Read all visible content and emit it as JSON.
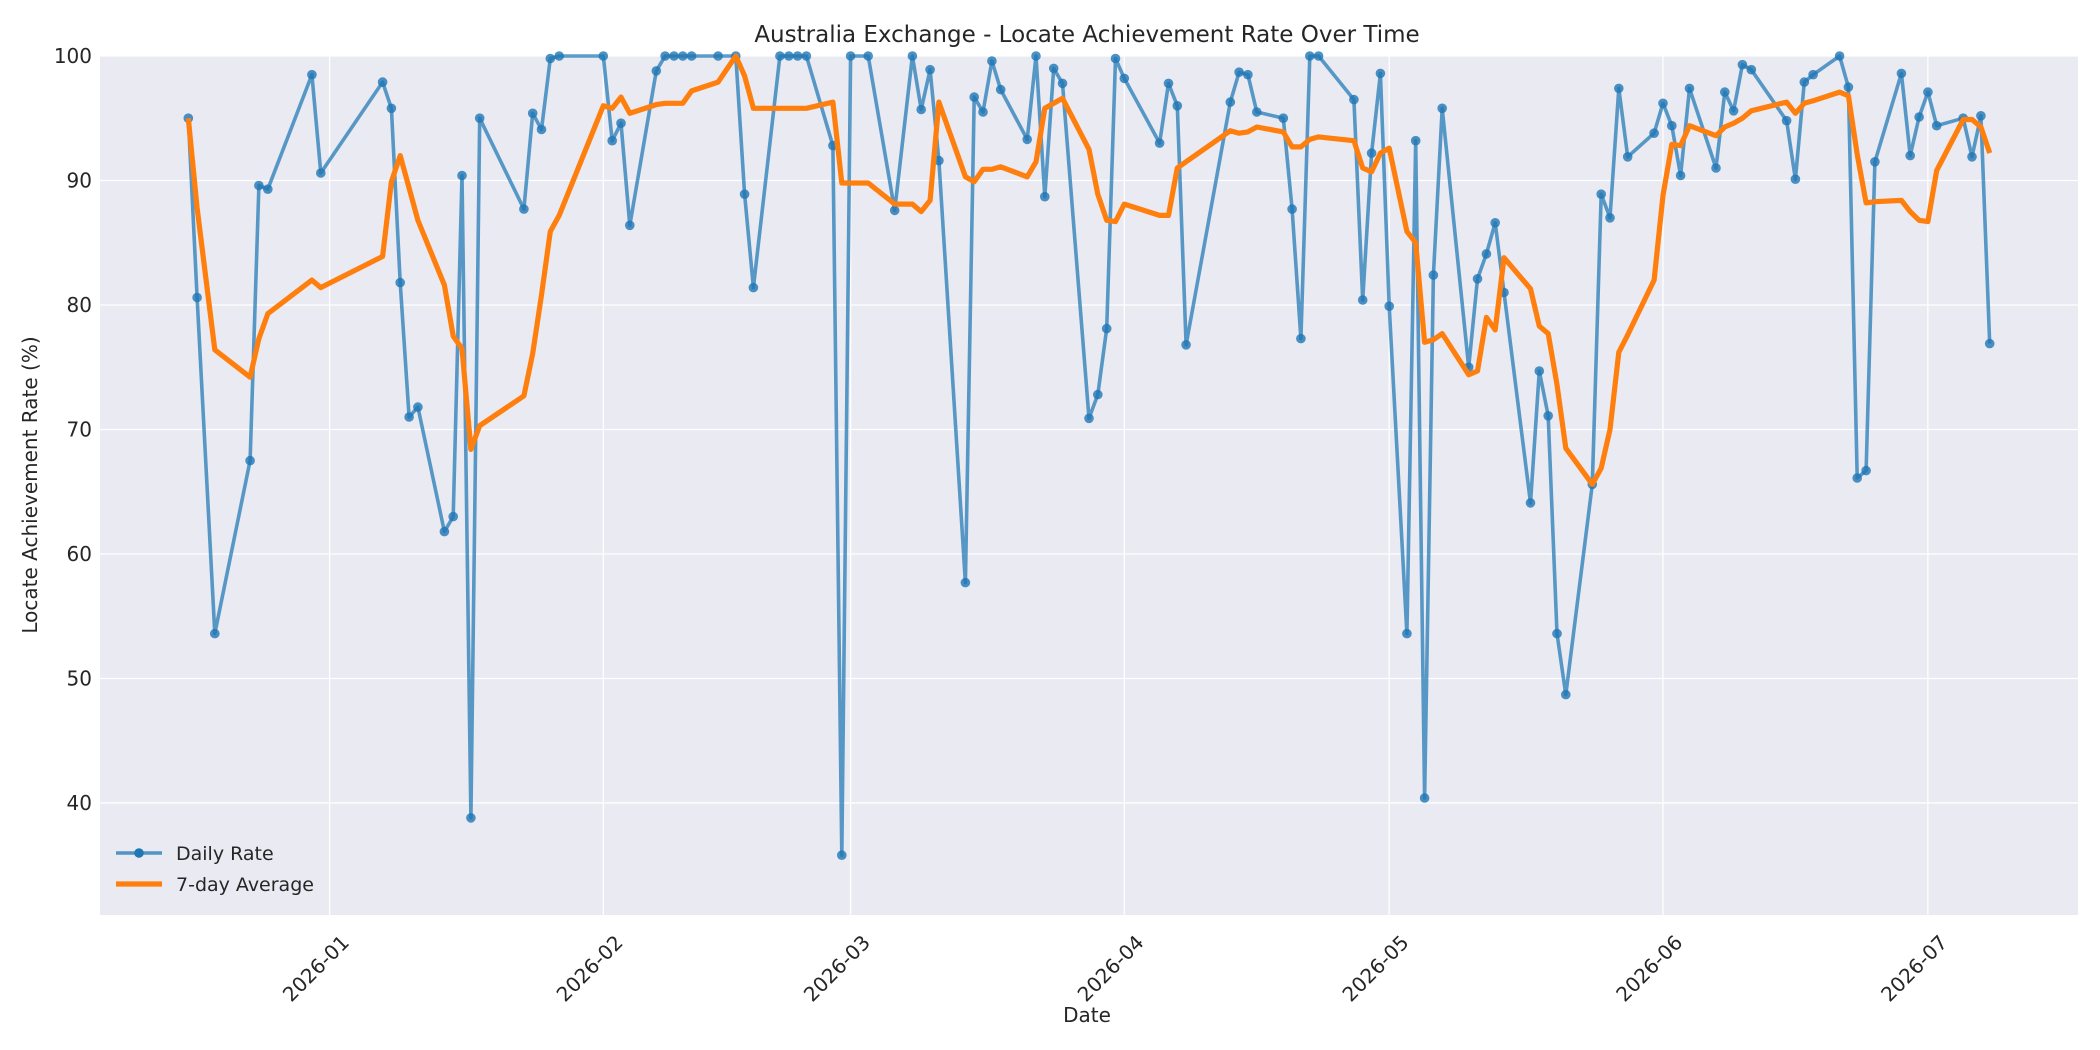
{
  "chart_data": {
    "type": "line",
    "title": "Australia Exchange - Locate Achievement Rate Over Time",
    "xlabel": "Date",
    "ylabel": "Locate Achievement Rate (%)",
    "xlim": [
      "2025-12-06",
      "2026-07-18"
    ],
    "ylim": [
      31,
      100
    ],
    "x_ticks": [
      "2026-01-01",
      "2026-02-01",
      "2026-03-01",
      "2026-04-01",
      "2026-05-01",
      "2026-06-01",
      "2026-07-01"
    ],
    "x_tick_labels": [
      "2026-01",
      "2026-02",
      "2026-03",
      "2026-04",
      "2026-05",
      "2026-06",
      "2026-07"
    ],
    "y_ticks": [
      40,
      50,
      60,
      70,
      80,
      90,
      100
    ],
    "y_tick_labels": [
      "40",
      "50",
      "60",
      "70",
      "80",
      "90",
      "100"
    ],
    "grid": true,
    "legend_position": "lower-left",
    "series": [
      {
        "name": "Daily Rate",
        "color": "#1f77b4",
        "marker": "circle",
        "points": [
          [
            "2025-12-16",
            95.0
          ],
          [
            "2025-12-17",
            80.6
          ],
          [
            "2025-12-19",
            53.6
          ],
          [
            "2025-12-23",
            67.5
          ],
          [
            "2025-12-24",
            89.6
          ],
          [
            "2025-12-25",
            89.3
          ],
          [
            "2025-12-30",
            98.5
          ],
          [
            "2025-12-31",
            90.6
          ],
          [
            "2026-01-07",
            97.9
          ],
          [
            "2026-01-08",
            95.8
          ],
          [
            "2026-01-09",
            81.8
          ],
          [
            "2026-01-10",
            71.0
          ],
          [
            "2026-01-11",
            71.8
          ],
          [
            "2026-01-14",
            61.8
          ],
          [
            "2026-01-15",
            63.0
          ],
          [
            "2026-01-16",
            90.4
          ],
          [
            "2026-01-17",
            38.8
          ],
          [
            "2026-01-18",
            95.0
          ],
          [
            "2026-01-23",
            87.7
          ],
          [
            "2026-01-24",
            95.4
          ],
          [
            "2026-01-25",
            94.1
          ],
          [
            "2026-01-26",
            99.8
          ],
          [
            "2026-01-27",
            100.0
          ],
          [
            "2026-02-01",
            100.0
          ],
          [
            "2026-02-02",
            93.2
          ],
          [
            "2026-02-03",
            94.6
          ],
          [
            "2026-02-04",
            86.4
          ],
          [
            "2026-02-07",
            98.8
          ],
          [
            "2026-02-08",
            100.0
          ],
          [
            "2026-02-09",
            100.0
          ],
          [
            "2026-02-10",
            100.0
          ],
          [
            "2026-02-11",
            100.0
          ],
          [
            "2026-02-14",
            100.0
          ],
          [
            "2026-02-16",
            100.0
          ],
          [
            "2026-02-17",
            88.9
          ],
          [
            "2026-02-18",
            81.4
          ],
          [
            "2026-02-21",
            100.0
          ],
          [
            "2026-02-22",
            100.0
          ],
          [
            "2026-02-23",
            100.0
          ],
          [
            "2026-02-24",
            100.0
          ],
          [
            "2026-02-27",
            92.8
          ],
          [
            "2026-02-28",
            35.8
          ],
          [
            "2026-03-01",
            100.0
          ],
          [
            "2026-03-03",
            100.0
          ],
          [
            "2026-03-06",
            87.6
          ],
          [
            "2026-03-08",
            100.0
          ],
          [
            "2026-03-09",
            95.7
          ],
          [
            "2026-03-10",
            98.9
          ],
          [
            "2026-03-11",
            91.6
          ],
          [
            "2026-03-14",
            57.7
          ],
          [
            "2026-03-15",
            96.7
          ],
          [
            "2026-03-16",
            95.5
          ],
          [
            "2026-03-17",
            99.6
          ],
          [
            "2026-03-18",
            97.3
          ],
          [
            "2026-03-21",
            93.3
          ],
          [
            "2026-03-22",
            100.0
          ],
          [
            "2026-03-23",
            88.7
          ],
          [
            "2026-03-24",
            99.0
          ],
          [
            "2026-03-25",
            97.8
          ],
          [
            "2026-03-28",
            70.9
          ],
          [
            "2026-03-29",
            72.8
          ],
          [
            "2026-03-30",
            78.1
          ],
          [
            "2026-03-31",
            99.8
          ],
          [
            "2026-04-01",
            98.2
          ],
          [
            "2026-04-05",
            93.0
          ],
          [
            "2026-04-06",
            97.8
          ],
          [
            "2026-04-07",
            96.0
          ],
          [
            "2026-04-08",
            76.8
          ],
          [
            "2026-04-13",
            96.3
          ],
          [
            "2026-04-14",
            98.7
          ],
          [
            "2026-04-15",
            98.5
          ],
          [
            "2026-04-16",
            95.5
          ],
          [
            "2026-04-19",
            95.0
          ],
          [
            "2026-04-20",
            87.7
          ],
          [
            "2026-04-21",
            77.3
          ],
          [
            "2026-04-22",
            100.0
          ],
          [
            "2026-04-23",
            100.0
          ],
          [
            "2026-04-27",
            96.5
          ],
          [
            "2026-04-28",
            80.4
          ],
          [
            "2026-04-29",
            92.2
          ],
          [
            "2026-04-30",
            98.6
          ],
          [
            "2026-05-01",
            79.9
          ],
          [
            "2026-05-03",
            53.6
          ],
          [
            "2026-05-04",
            93.2
          ],
          [
            "2026-05-05",
            40.4
          ],
          [
            "2026-05-06",
            82.4
          ],
          [
            "2026-05-07",
            95.8
          ],
          [
            "2026-05-10",
            75.0
          ],
          [
            "2026-05-11",
            82.1
          ],
          [
            "2026-05-12",
            84.1
          ],
          [
            "2026-05-13",
            86.6
          ],
          [
            "2026-05-14",
            81.0
          ],
          [
            "2026-05-17",
            64.1
          ],
          [
            "2026-05-18",
            74.7
          ],
          [
            "2026-05-19",
            71.1
          ],
          [
            "2026-05-20",
            53.6
          ],
          [
            "2026-05-21",
            48.7
          ],
          [
            "2026-05-24",
            65.6
          ],
          [
            "2026-05-25",
            88.9
          ],
          [
            "2026-05-26",
            87.0
          ],
          [
            "2026-05-27",
            97.4
          ],
          [
            "2026-05-28",
            91.9
          ],
          [
            "2026-05-31",
            93.8
          ],
          [
            "2026-06-01",
            96.2
          ],
          [
            "2026-06-02",
            94.4
          ],
          [
            "2026-06-03",
            90.4
          ],
          [
            "2026-06-04",
            97.4
          ],
          [
            "2026-06-07",
            91.0
          ],
          [
            "2026-06-08",
            97.1
          ],
          [
            "2026-06-09",
            95.6
          ],
          [
            "2026-06-10",
            99.3
          ],
          [
            "2026-06-11",
            98.9
          ],
          [
            "2026-06-15",
            94.8
          ],
          [
            "2026-06-16",
            90.1
          ],
          [
            "2026-06-17",
            97.9
          ],
          [
            "2026-06-18",
            98.5
          ],
          [
            "2026-06-21",
            100.0
          ],
          [
            "2026-06-22",
            97.5
          ],
          [
            "2026-06-23",
            66.1
          ],
          [
            "2026-06-24",
            66.7
          ],
          [
            "2026-06-25",
            91.5
          ],
          [
            "2026-06-28",
            98.6
          ],
          [
            "2026-06-29",
            92.0
          ],
          [
            "2026-06-30",
            95.1
          ],
          [
            "2026-07-01",
            97.1
          ],
          [
            "2026-07-02",
            94.4
          ],
          [
            "2026-07-05",
            95.0
          ],
          [
            "2026-07-06",
            91.9
          ],
          [
            "2026-07-07",
            95.2
          ],
          [
            "2026-07-08",
            76.9
          ]
        ]
      },
      {
        "name": "7-day Average",
        "color": "#ff7f0e",
        "marker": "none",
        "points": [
          [
            "2025-12-16",
            95.0
          ],
          [
            "2025-12-17",
            87.8
          ],
          [
            "2025-12-19",
            76.4
          ],
          [
            "2025-12-23",
            74.2
          ],
          [
            "2025-12-24",
            77.3
          ],
          [
            "2025-12-25",
            79.3
          ],
          [
            "2025-12-30",
            82.0
          ],
          [
            "2025-12-31",
            81.4
          ],
          [
            "2026-01-07",
            83.9
          ],
          [
            "2026-01-08",
            89.9
          ],
          [
            "2026-01-09",
            92.0
          ],
          [
            "2026-01-10",
            89.4
          ],
          [
            "2026-01-11",
            86.8
          ],
          [
            "2026-01-14",
            81.6
          ],
          [
            "2026-01-15",
            77.5
          ],
          [
            "2026-01-16",
            76.5
          ],
          [
            "2026-01-17",
            68.4
          ],
          [
            "2026-01-18",
            70.3
          ],
          [
            "2026-01-23",
            72.7
          ],
          [
            "2026-01-24",
            76.1
          ],
          [
            "2026-01-25",
            80.8
          ],
          [
            "2026-01-26",
            85.9
          ],
          [
            "2026-01-27",
            87.2
          ],
          [
            "2026-02-01",
            96.0
          ],
          [
            "2026-02-02",
            95.8
          ],
          [
            "2026-02-03",
            96.7
          ],
          [
            "2026-02-04",
            95.4
          ],
          [
            "2026-02-07",
            96.1
          ],
          [
            "2026-02-08",
            96.2
          ],
          [
            "2026-02-09",
            96.2
          ],
          [
            "2026-02-10",
            96.2
          ],
          [
            "2026-02-11",
            97.2
          ],
          [
            "2026-02-14",
            97.9
          ],
          [
            "2026-02-16",
            100.0
          ],
          [
            "2026-02-17",
            98.4
          ],
          [
            "2026-02-18",
            95.8
          ],
          [
            "2026-02-21",
            95.8
          ],
          [
            "2026-02-22",
            95.8
          ],
          [
            "2026-02-23",
            95.8
          ],
          [
            "2026-02-24",
            95.8
          ],
          [
            "2026-02-27",
            96.3
          ],
          [
            "2026-02-28",
            89.8
          ],
          [
            "2026-03-01",
            89.8
          ],
          [
            "2026-03-03",
            89.8
          ],
          [
            "2026-03-06",
            88.1
          ],
          [
            "2026-03-08",
            88.1
          ],
          [
            "2026-03-09",
            87.5
          ],
          [
            "2026-03-10",
            88.4
          ],
          [
            "2026-03-11",
            96.3
          ],
          [
            "2026-03-14",
            90.3
          ],
          [
            "2026-03-15",
            89.9
          ],
          [
            "2026-03-16",
            90.9
          ],
          [
            "2026-03-17",
            90.9
          ],
          [
            "2026-03-18",
            91.1
          ],
          [
            "2026-03-21",
            90.3
          ],
          [
            "2026-03-22",
            91.5
          ],
          [
            "2026-03-23",
            95.8
          ],
          [
            "2026-03-24",
            96.2
          ],
          [
            "2026-03-25",
            96.6
          ],
          [
            "2026-03-28",
            92.5
          ],
          [
            "2026-03-29",
            88.9
          ],
          [
            "2026-03-30",
            86.8
          ],
          [
            "2026-03-31",
            86.7
          ],
          [
            "2026-04-01",
            88.1
          ],
          [
            "2026-04-05",
            87.2
          ],
          [
            "2026-04-06",
            87.2
          ],
          [
            "2026-04-07",
            91.0
          ],
          [
            "2026-04-08",
            91.5
          ],
          [
            "2026-04-13",
            94.0
          ],
          [
            "2026-04-14",
            93.8
          ],
          [
            "2026-04-15",
            93.9
          ],
          [
            "2026-04-16",
            94.3
          ],
          [
            "2026-04-19",
            93.9
          ],
          [
            "2026-04-20",
            92.7
          ],
          [
            "2026-04-21",
            92.7
          ],
          [
            "2026-04-22",
            93.3
          ],
          [
            "2026-04-23",
            93.5
          ],
          [
            "2026-04-27",
            93.2
          ],
          [
            "2026-04-28",
            91.0
          ],
          [
            "2026-04-29",
            90.7
          ],
          [
            "2026-04-30",
            92.2
          ],
          [
            "2026-05-01",
            92.6
          ],
          [
            "2026-05-03",
            85.9
          ],
          [
            "2026-05-04",
            85.0
          ],
          [
            "2026-05-05",
            77.0
          ],
          [
            "2026-05-06",
            77.2
          ],
          [
            "2026-05-07",
            77.7
          ],
          [
            "2026-05-10",
            74.4
          ],
          [
            "2026-05-11",
            74.7
          ],
          [
            "2026-05-12",
            79.0
          ],
          [
            "2026-05-13",
            78.0
          ],
          [
            "2026-05-14",
            83.8
          ],
          [
            "2026-05-17",
            81.3
          ],
          [
            "2026-05-18",
            78.3
          ],
          [
            "2026-05-19",
            77.7
          ],
          [
            "2026-05-20",
            73.6
          ],
          [
            "2026-05-21",
            68.5
          ],
          [
            "2026-05-24",
            65.6
          ],
          [
            "2026-05-25",
            66.9
          ],
          [
            "2026-05-26",
            70.0
          ],
          [
            "2026-05-27",
            76.2
          ],
          [
            "2026-05-28",
            77.6
          ],
          [
            "2026-05-31",
            82.0
          ],
          [
            "2026-06-01",
            88.8
          ],
          [
            "2026-06-02",
            92.9
          ],
          [
            "2026-06-03",
            92.8
          ],
          [
            "2026-06-04",
            94.4
          ],
          [
            "2026-06-07",
            93.6
          ],
          [
            "2026-06-08",
            94.3
          ],
          [
            "2026-06-09",
            94.6
          ],
          [
            "2026-06-10",
            95.0
          ],
          [
            "2026-06-11",
            95.6
          ],
          [
            "2026-06-15",
            96.3
          ],
          [
            "2026-06-16",
            95.4
          ],
          [
            "2026-06-17",
            96.2
          ],
          [
            "2026-06-18",
            96.4
          ],
          [
            "2026-06-21",
            97.1
          ],
          [
            "2026-06-22",
            96.8
          ],
          [
            "2026-06-23",
            92.1
          ],
          [
            "2026-06-24",
            88.2
          ],
          [
            "2026-06-25",
            88.3
          ],
          [
            "2026-06-28",
            88.4
          ],
          [
            "2026-06-29",
            87.5
          ],
          [
            "2026-06-30",
            86.8
          ],
          [
            "2026-07-01",
            86.7
          ],
          [
            "2026-07-02",
            90.8
          ],
          [
            "2026-07-05",
            94.9
          ],
          [
            "2026-07-06",
            94.9
          ],
          [
            "2026-07-07",
            94.3
          ],
          [
            "2026-07-08",
            92.2
          ]
        ]
      }
    ]
  }
}
